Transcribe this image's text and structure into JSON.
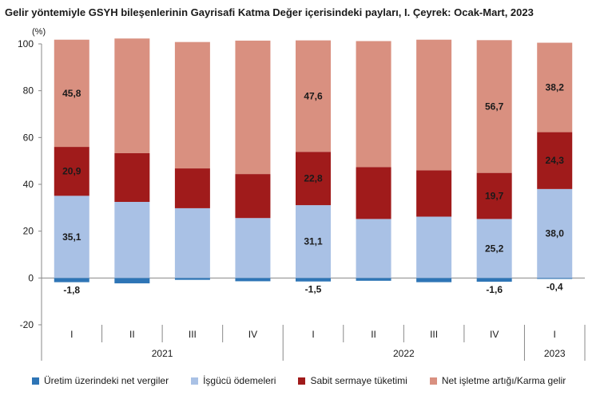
{
  "title": "Gelir yöntemiyle GSYH bileşenlerinin Gayrisafi Katma Değer içerisindeki payları, I. Çeyrek: Ocak-Mart, 2023",
  "chart_data": {
    "type": "bar",
    "stacked": true,
    "unit_label": "(%)",
    "ylim": [
      -20,
      100
    ],
    "yticks": [
      "-20",
      "0",
      "20",
      "40",
      "60",
      "80",
      "100"
    ],
    "categories": [
      "I",
      "II",
      "III",
      "IV",
      "I",
      "II",
      "III",
      "IV",
      "I"
    ],
    "year_groups": [
      {
        "label": "2021",
        "count": 4
      },
      {
        "label": "2022",
        "count": 4
      },
      {
        "label": "2023",
        "count": 1
      }
    ],
    "series": [
      {
        "name": "Üretim üzerindeki net vergiler",
        "color": "#2e75b6",
        "values": [
          -1.8,
          -2.3,
          -0.8,
          -1.4,
          -1.5,
          -1.2,
          -1.8,
          -1.6,
          -0.4
        ],
        "labels": [
          "-1,8",
          "",
          "",
          "",
          "-1,5",
          "",
          "",
          "-1,6",
          "-0,4"
        ]
      },
      {
        "name": "İşgücü ödemeleri",
        "color": "#a9c1e5",
        "values": [
          35.1,
          32.5,
          29.8,
          25.6,
          31.1,
          25.2,
          26.2,
          25.2,
          38.0
        ],
        "labels": [
          "35,1",
          "",
          "",
          "",
          "31,1",
          "",
          "",
          "25,2",
          "38,0"
        ]
      },
      {
        "name": "Sabit sermaye tüketimi",
        "color": "#a01b1b",
        "values": [
          20.9,
          20.8,
          17.0,
          18.8,
          22.8,
          22.2,
          19.8,
          19.7,
          24.3
        ],
        "labels": [
          "20,9",
          "",
          "",
          "",
          "22,8",
          "",
          "",
          "19,7",
          "24,3"
        ]
      },
      {
        "name": "Net işletme artığı/Karma gelir",
        "color": "#d99080",
        "values": [
          45.8,
          49.0,
          54.0,
          57.0,
          47.6,
          53.8,
          55.8,
          56.7,
          38.2
        ],
        "labels": [
          "45,8",
          "",
          "",
          "",
          "47,6",
          "",
          "",
          "56,7",
          "38,2"
        ]
      }
    ]
  }
}
